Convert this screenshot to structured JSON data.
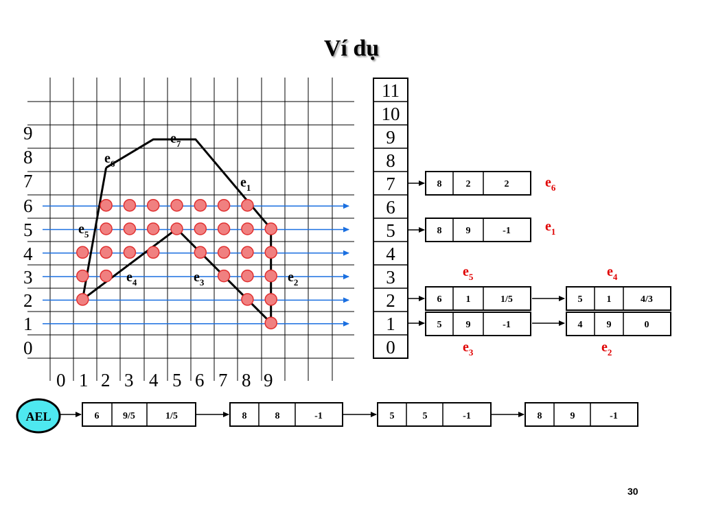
{
  "title": "Ví dụ",
  "page_number": "30",
  "grid": {
    "row_labels": [
      "9",
      "8",
      "7",
      "6",
      "5",
      "4",
      "3",
      "2",
      "1",
      "0"
    ],
    "col_labels": [
      "0",
      "1",
      "2",
      "3",
      "4",
      "5",
      "6",
      "7",
      "8",
      "9"
    ],
    "edge_labels": [
      {
        "name": "e",
        "sub": "7"
      },
      {
        "name": "e",
        "sub": "6"
      },
      {
        "name": "e",
        "sub": "1"
      },
      {
        "name": "e",
        "sub": "5"
      },
      {
        "name": "e",
        "sub": "4"
      },
      {
        "name": "e",
        "sub": "3"
      },
      {
        "name": "e",
        "sub": "2"
      }
    ],
    "scanlines": [
      1,
      2,
      3,
      4,
      5,
      6
    ],
    "polygon": [
      [
        2,
        7.6
      ],
      [
        4,
        8.8
      ],
      [
        5.8,
        8.8
      ],
      [
        9,
        5
      ],
      [
        9,
        1
      ],
      [
        5,
        5
      ],
      [
        1,
        2
      ],
      [
        2,
        7.6
      ]
    ],
    "pixels": [
      [
        2,
        6
      ],
      [
        3,
        6
      ],
      [
        4,
        6
      ],
      [
        5,
        6
      ],
      [
        6,
        6
      ],
      [
        7,
        6
      ],
      [
        8,
        6
      ],
      [
        2,
        5
      ],
      [
        3,
        5
      ],
      [
        4,
        5
      ],
      [
        5,
        5
      ],
      [
        6,
        5
      ],
      [
        7,
        5
      ],
      [
        8,
        5
      ],
      [
        9,
        5
      ],
      [
        1,
        4
      ],
      [
        2,
        4
      ],
      [
        3,
        4
      ],
      [
        4,
        4
      ],
      [
        6,
        4
      ],
      [
        7,
        4
      ],
      [
        8,
        4
      ],
      [
        9,
        4
      ],
      [
        1,
        3
      ],
      [
        2,
        3
      ],
      [
        7,
        3
      ],
      [
        8,
        3
      ],
      [
        9,
        3
      ],
      [
        1,
        2
      ],
      [
        8,
        2
      ],
      [
        9,
        2
      ],
      [
        9,
        1
      ]
    ]
  },
  "edge_table": {
    "buckets": [
      "11",
      "10",
      "9",
      "8",
      "7",
      "6",
      "5",
      "4",
      "3",
      "2",
      "1",
      "0"
    ],
    "entries": [
      {
        "bucket": "7",
        "label": {
          "name": "e",
          "sub": "6"
        },
        "values": [
          "8",
          "2",
          "2"
        ]
      },
      {
        "bucket": "5",
        "label": {
          "name": "e",
          "sub": "1"
        },
        "values": [
          "8",
          "9",
          "-1"
        ]
      },
      {
        "bucket": "2",
        "label": {
          "name": "e",
          "sub": "5"
        },
        "values": [
          "6",
          "1",
          "1/5"
        ]
      },
      {
        "bucket": "2",
        "label": {
          "name": "e",
          "sub": "4"
        },
        "values": [
          "5",
          "1",
          "4/3"
        ]
      },
      {
        "bucket": "1",
        "label": {
          "name": "e",
          "sub": "3"
        },
        "values": [
          "5",
          "9",
          "-1"
        ]
      },
      {
        "bucket": "1",
        "label": {
          "name": "e",
          "sub": "2"
        },
        "values": [
          "4",
          "9",
          "0"
        ]
      }
    ]
  },
  "ael": {
    "label": "AEL",
    "accent_color": "#4ee8f0",
    "nodes": [
      [
        "6",
        "9/5",
        "1/5"
      ],
      [
        "8",
        "8",
        "-1"
      ],
      [
        "5",
        "5",
        "-1"
      ],
      [
        "8",
        "9",
        "-1"
      ]
    ]
  },
  "colors": {
    "scanline": "#1a6fe0",
    "pixel_fill": "#f08080",
    "pixel_stroke": "#e03030",
    "edge_label_red": "#e00000"
  }
}
